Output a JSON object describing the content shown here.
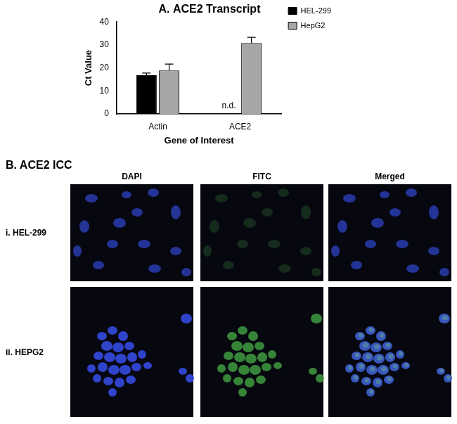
{
  "chart_data": {
    "type": "bar",
    "title": "A. ACE2 Transcript",
    "x_label": "Gene of Interest",
    "y_label": "Ct Value",
    "categories": [
      "Actin",
      "ACE2"
    ],
    "series": [
      {
        "name": "HEL-299",
        "color": "#000000",
        "values": [
          16.8,
          null
        ],
        "errors": [
          1.0,
          null
        ]
      },
      {
        "name": "HepG2",
        "color": "#a6a6a6",
        "values": [
          18.9,
          30.8
        ],
        "errors": [
          2.8,
          2.5
        ]
      }
    ],
    "annotations": [
      {
        "text": "n.d.",
        "category": "ACE2",
        "series": "HEL-299"
      }
    ],
    "ylim": [
      0,
      40
    ],
    "yticks": [
      0,
      10,
      20,
      30,
      40
    ],
    "grid": false,
    "legend": "upper right"
  },
  "panel_b": {
    "title": "B. ACE2 ICC",
    "columns": [
      "DAPI",
      "FITC",
      "Merged"
    ],
    "rows": [
      "i. HEL-299",
      "ii. HEPG2"
    ]
  }
}
